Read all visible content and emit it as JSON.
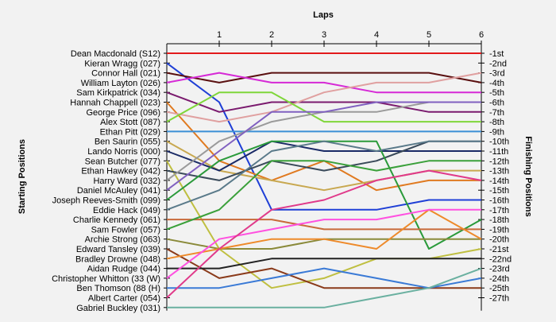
{
  "chart_data": {
    "type": "line",
    "title": "",
    "xlabel": "Laps",
    "ylabel_left": "Starting Positions",
    "ylabel_right": "Finishing Positions",
    "laps": [
      1,
      2,
      3,
      4,
      5,
      6
    ],
    "grid": false,
    "drivers": [
      "Dean Macdonald (S12)",
      "Kieran Wragg (027)",
      "Connor Hall (021)",
      "William Layton (026)",
      "Sam Kirkpatrick (034)",
      "Hannah Chappell (023)",
      "George Price (096)",
      "Alex Stott (087)",
      "Ethan Pitt (029)",
      "Ben Saurin (055)",
      "Lando Norris (000)",
      "Sean Butcher (077)",
      "Ethan Hawkey (042)",
      "Harry Ward (032)",
      "Daniel McAuley (041)",
      "Joseph Reeves-Smith (099)",
      "Eddie Hack (049)",
      "Charlie Kennedy (061)",
      "Sam Fowler (057)",
      "Archie Strong (063)",
      "Edward Tansley (039)",
      "Bradley Drowne (048)",
      "Aidan Rudge (044)",
      "Christopher Whitton (33 (W)",
      "Ben Thomson (88 (H)",
      "Albert Carter (054)",
      "Gabriel Buckley (031)"
    ],
    "finishing_labels": [
      "1st",
      "2nd",
      "3rd",
      "4th",
      "5th",
      "6th",
      "7th",
      "8th",
      "9th",
      "10th",
      "11th",
      "12th",
      "13th",
      "14th",
      "15th",
      "16th",
      "17th",
      "18th",
      "19th",
      "20th",
      "21st",
      "22nd",
      "23rd",
      "24th",
      "25th",
      "27th"
    ],
    "series": [
      {
        "color": "#e31a1c",
        "positions": [
          1,
          1,
          1,
          1,
          1,
          1,
          1
        ]
      },
      {
        "color": "#1f3fd6",
        "positions": [
          2,
          6,
          17,
          17,
          17,
          16,
          16
        ]
      },
      {
        "color": "#5a1010",
        "positions": [
          3,
          4,
          3,
          3,
          3,
          3,
          4
        ]
      },
      {
        "color": "#d62ad6",
        "positions": [
          4,
          3,
          4,
          4,
          5,
          5,
          5
        ]
      },
      {
        "color": "#7a1a6e",
        "positions": [
          5,
          7,
          6,
          6,
          6,
          7,
          7
        ]
      },
      {
        "color": "#e07a20",
        "positions": [
          6,
          12,
          14,
          12,
          15,
          14,
          14
        ]
      },
      {
        "color": "#e0a0a0",
        "positions": [
          7,
          8,
          7,
          5,
          4,
          4,
          3
        ]
      },
      {
        "color": "#7fd63a",
        "positions": [
          8,
          5,
          5,
          8,
          8,
          8,
          8
        ]
      },
      {
        "color": "#3b8fd6",
        "positions": [
          9,
          9,
          9,
          9,
          9,
          9,
          9
        ]
      },
      {
        "color": "#c8a850",
        "positions": [
          10,
          13,
          14,
          15,
          14,
          13,
          13
        ]
      },
      {
        "color": "#1a2a66",
        "positions": [
          11,
          13,
          10,
          11,
          11,
          11,
          11
        ]
      },
      {
        "color": "#bfbf40",
        "positions": [
          12,
          21,
          25,
          24,
          22,
          22,
          21
        ]
      },
      {
        "color": "#3a4a5a",
        "positions": [
          13,
          14,
          12,
          13,
          12,
          10,
          10
        ]
      },
      {
        "color": "#9a9a9a",
        "positions": [
          14,
          10,
          8,
          7,
          7,
          6,
          6
        ]
      },
      {
        "color": "#8060c0",
        "positions": [
          15,
          11,
          7,
          7,
          6,
          6,
          6
        ]
      },
      {
        "color": "#2a9a3a",
        "positions": [
          16,
          12,
          10,
          10,
          10,
          21,
          18
        ]
      },
      {
        "color": "#5a7a8a",
        "positions": [
          17,
          15,
          11,
          10,
          11,
          10,
          10
        ]
      },
      {
        "color": "#c86a3a",
        "positions": [
          18,
          18,
          18,
          19,
          19,
          19,
          19
        ]
      },
      {
        "color": "#3aa03a",
        "positions": [
          19,
          17,
          12,
          12,
          13,
          12,
          12
        ]
      },
      {
        "color": "#8a8a3a",
        "positions": [
          20,
          21,
          21,
          20,
          20,
          20,
          20
        ]
      },
      {
        "color": "#8a3a1a",
        "positions": [
          21,
          24,
          23,
          25,
          25,
          25,
          25
        ]
      },
      {
        "color": "#ee8a2a",
        "positions": [
          22,
          21,
          20,
          20,
          21,
          17,
          20
        ]
      },
      {
        "color": "#222222",
        "positions": [
          23,
          23,
          22,
          22,
          22,
          22,
          22
        ]
      },
      {
        "color": "#ff50e0",
        "positions": [
          24,
          20,
          19,
          18,
          18,
          17,
          17
        ]
      },
      {
        "color": "#3a7ad6",
        "positions": [
          25,
          25,
          24,
          23,
          24,
          25,
          24
        ]
      },
      {
        "color": "#e03a8a",
        "positions": [
          26,
          21,
          17,
          16,
          14,
          13,
          14
        ]
      },
      {
        "color": "#6ab0a0",
        "positions": [
          27,
          27,
          27,
          27,
          26,
          25,
          23
        ]
      }
    ]
  }
}
